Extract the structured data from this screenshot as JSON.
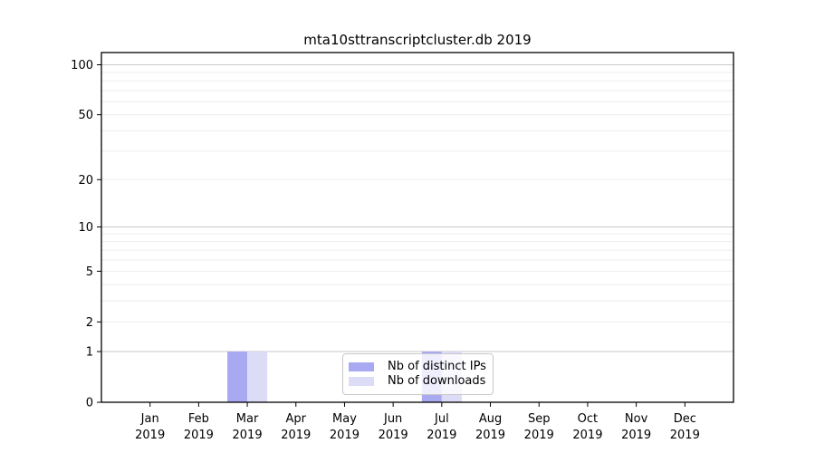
{
  "chart_data": {
    "type": "bar",
    "title": "mta10sttranscriptcluster.db 2019",
    "categories": [
      "Jan",
      "Feb",
      "Mar",
      "Apr",
      "May",
      "Jun",
      "Jul",
      "Aug",
      "Sep",
      "Oct",
      "Nov",
      "Dec"
    ],
    "x_tick_year": "2019",
    "series": [
      {
        "name": "Nb of distinct IPs",
        "color": "#a9a9f2",
        "values": [
          0,
          0,
          1,
          0,
          0,
          0,
          1,
          0,
          0,
          0,
          0,
          0
        ]
      },
      {
        "name": "Nb of downloads",
        "color": "#dcdcf7",
        "values": [
          0,
          0,
          1,
          0,
          0,
          0,
          1,
          0,
          0,
          0,
          0,
          0
        ]
      }
    ],
    "y_scale": "log1p",
    "ylim": [
      0,
      118
    ],
    "y_ticks": [
      0,
      1,
      2,
      5,
      10,
      20,
      50,
      100
    ],
    "y_gridlines": [
      1,
      2,
      3,
      4,
      5,
      6,
      7,
      8,
      9,
      10,
      20,
      30,
      40,
      50,
      60,
      70,
      80,
      90,
      100
    ],
    "y_major_gridlines": [
      1,
      10,
      100
    ],
    "grid": {
      "major_color": "#c9c9c9",
      "minor_color": "#ededed",
      "on": true
    },
    "axis_color": "#000000",
    "tick_label_color": "#000000",
    "legend_position": "lower center"
  }
}
